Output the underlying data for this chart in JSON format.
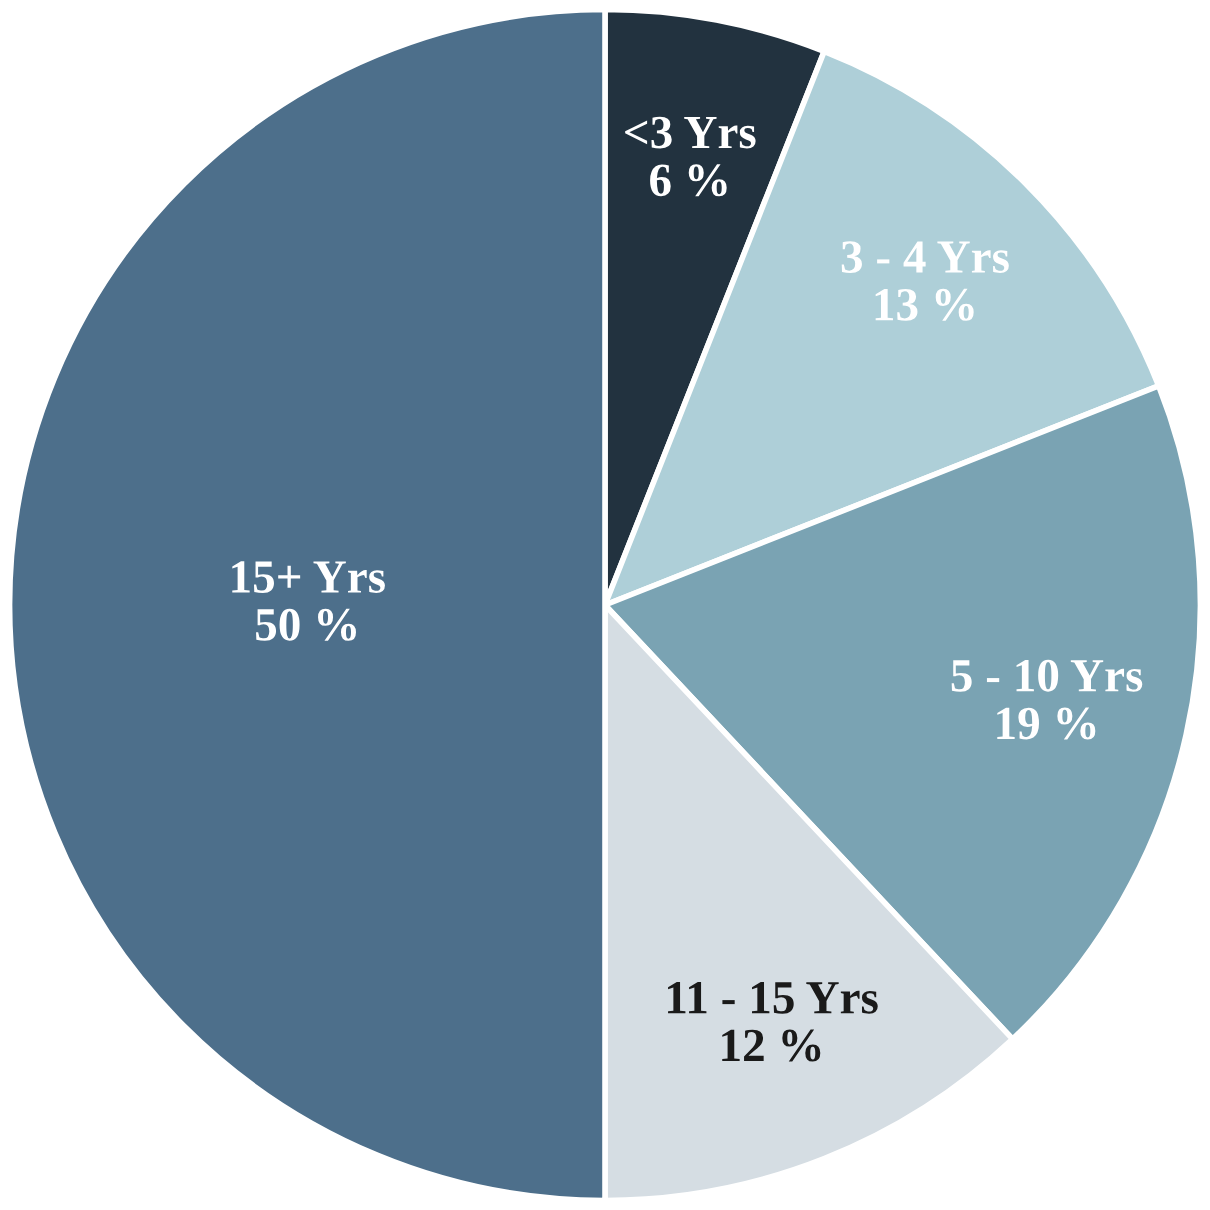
{
  "chart_data": {
    "type": "pie",
    "categories": [
      "<3 Yrs",
      "3 - 4 Yrs",
      "5 - 10 Yrs",
      "11 - 15 Yrs",
      "15+ Yrs"
    ],
    "values": [
      6,
      13,
      19,
      12,
      50
    ],
    "colors": [
      "#22323f",
      "#aecfd8",
      "#7aa3b3",
      "#d5dde3",
      "#4d6f8b"
    ],
    "value_labels": [
      "6 %",
      "13 %",
      "19 %",
      "12 %",
      "50 %"
    ]
  }
}
